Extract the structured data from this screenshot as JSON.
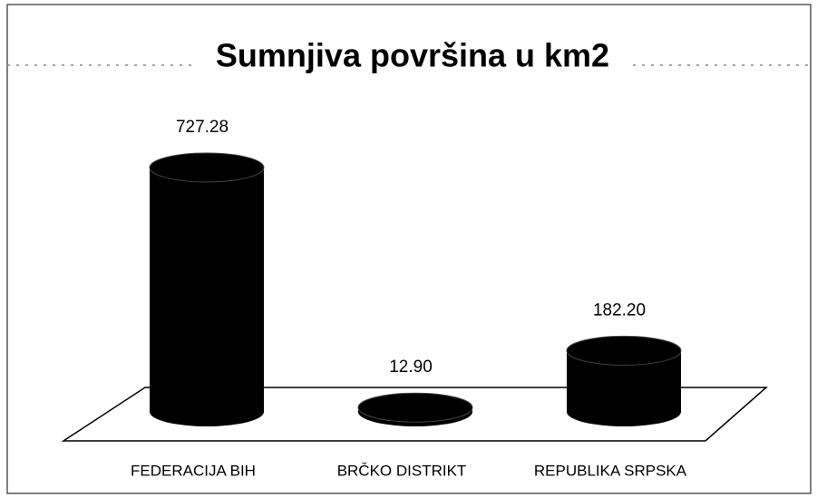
{
  "chart_data": {
    "type": "bar",
    "title": "Sumnjiva površina u km2",
    "categories": [
      "FEDERACIJA BIH",
      "BRČKO DISTRIKT",
      "REPUBLIKA SRPSKA"
    ],
    "values": [
      727.28,
      12.9,
      182.2
    ],
    "value_labels": [
      "727.28",
      "12.90",
      "182.20"
    ],
    "color": "#000000"
  }
}
